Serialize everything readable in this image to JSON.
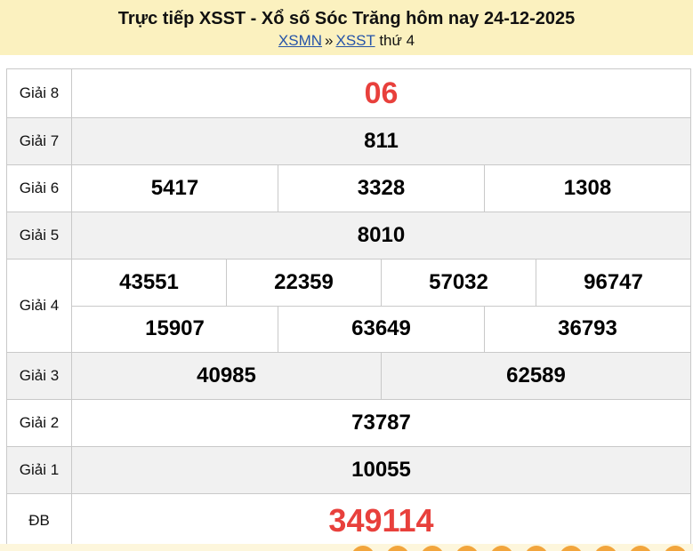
{
  "header": {
    "title": "Trực tiếp XSST - Xổ số Sóc Trăng hôm nay 24-12-2025",
    "breadcrumb": {
      "region_link": "XSMN",
      "separator": "»",
      "province_link": "XSST",
      "day": "thứ 4"
    }
  },
  "results": {
    "rows": [
      {
        "label": "Giải 8",
        "cells": [
          "06"
        ],
        "highlight": true
      },
      {
        "label": "Giải 7",
        "cells": [
          "811"
        ]
      },
      {
        "label": "Giải 6",
        "cells": [
          "5417",
          "3328",
          "1308"
        ]
      },
      {
        "label": "Giải 5",
        "cells": [
          "8010"
        ]
      },
      {
        "label": "Giải 4",
        "lines": [
          [
            "43551",
            "22359",
            "57032",
            "96747"
          ],
          [
            "15907",
            "63649",
            "36793"
          ]
        ]
      },
      {
        "label": "Giải 3",
        "cells": [
          "40985",
          "62589"
        ]
      },
      {
        "label": "Giải 2",
        "cells": [
          "73787"
        ]
      },
      {
        "label": "Giải 1",
        "cells": [
          "10055"
        ]
      },
      {
        "label": "ĐB",
        "cells": [
          "349114"
        ],
        "highlight": true
      }
    ]
  },
  "footer": {
    "ball_count": 10
  },
  "colors": {
    "header_background": "#FBF1BF",
    "highlight_red": "#E8403C",
    "link_blue": "#2553a8",
    "row_alt_background": "#f1f1f1",
    "table_border": "#c9c9c9",
    "ball_orange": "#F2A53C",
    "strip_background": "#FDF6DC"
  }
}
